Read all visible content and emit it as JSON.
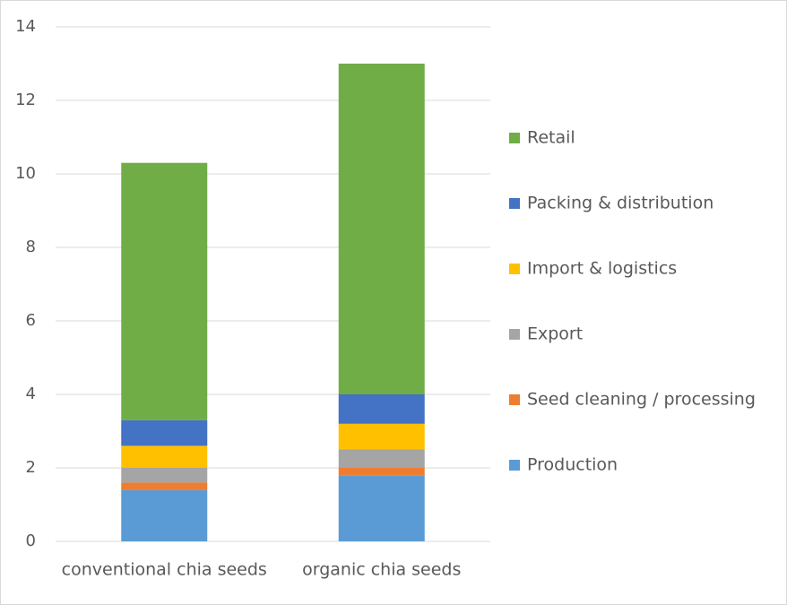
{
  "chart_data": {
    "type": "stacked_bar",
    "categories": [
      "conventional chia seeds",
      "organic chia seeds"
    ],
    "series": [
      {
        "name": "Production",
        "color": "#5b9bd5",
        "values": [
          1.4,
          1.8
        ]
      },
      {
        "name": "Seed cleaning / processing",
        "color": "#ed7d31",
        "values": [
          0.2,
          0.2
        ]
      },
      {
        "name": "Export",
        "color": "#a5a5a5",
        "values": [
          0.4,
          0.5
        ]
      },
      {
        "name": "Import & logistics",
        "color": "#ffc000",
        "values": [
          0.6,
          0.7
        ]
      },
      {
        "name": "Packing & distribution",
        "color": "#4472c4",
        "values": [
          0.7,
          0.8
        ]
      },
      {
        "name": "Retail",
        "color": "#70ad47",
        "values": [
          7.0,
          9.0
        ]
      }
    ],
    "ylim": [
      0,
      14
    ],
    "yticks": [
      0,
      2,
      4,
      6,
      8,
      10,
      12,
      14
    ],
    "grid": true,
    "legend": "right"
  }
}
